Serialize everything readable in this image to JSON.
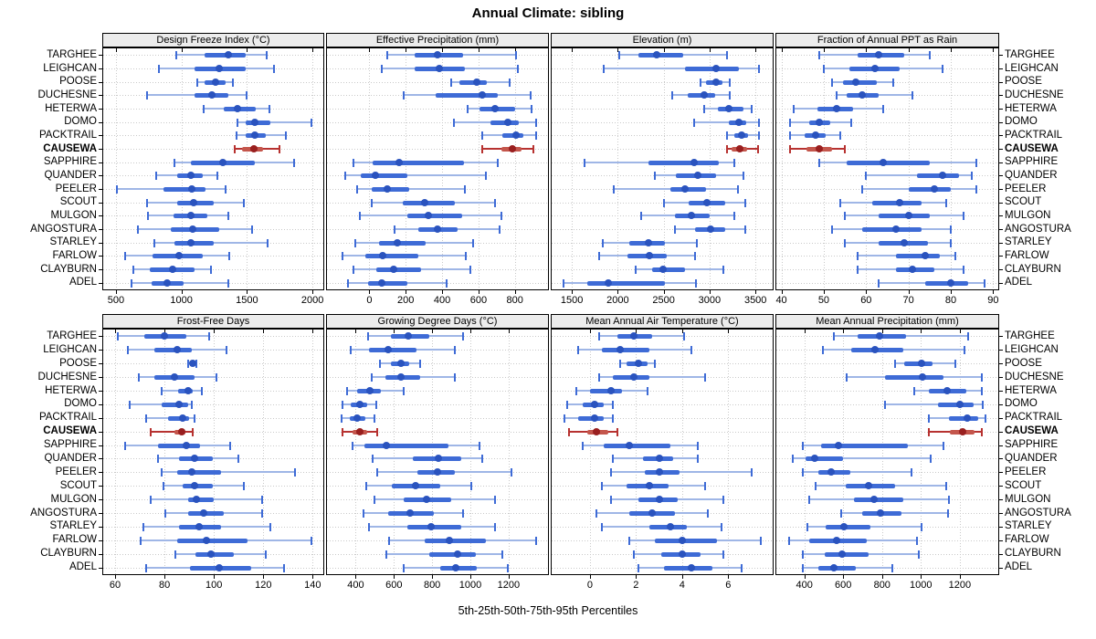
{
  "title": "Annual Climate: sibling",
  "caption": "5th-25th-50th-75th-95th Percentiles",
  "highlight_station": "CAUSEWA",
  "stations": [
    "TARGHEE",
    "LEIGHCAN",
    "POOSE",
    "DUCHESNE",
    "HETERWA",
    "DOMO",
    "PACKTRAIL",
    "CAUSEWA",
    "SAPPHIRE",
    "QUANDER",
    "PEELER",
    "SCOUT",
    "MULGON",
    "ANGOSTURA",
    "STARLEY",
    "FARLOW",
    "CLAYBURN",
    "ADEL"
  ],
  "colors": {
    "normal": {
      "line": "#9fb6e6",
      "cap": "#3e6bd6",
      "bar": "#3e6bd6",
      "dot": "#2a53be"
    },
    "highlight": {
      "line": "#b73230",
      "cap": "#b73230",
      "bar": "#c4564c",
      "dot": "#991f1f"
    },
    "strip_bg": "#ececec",
    "grid": "#c9c9c9",
    "border": "#000000"
  },
  "chart_data": {
    "type": "percentile-dotplot",
    "layout": "2 rows x 4 cols trellis",
    "percentiles": [
      "5th",
      "25th",
      "50th",
      "75th",
      "95th"
    ],
    "panels": [
      {
        "title": "Design Freeze Index (°C)",
        "grid_row": 0,
        "grid_col": 0,
        "xlim": [
          403,
          2083
        ],
        "ticks": [
          500,
          1000,
          1500,
          2000
        ],
        "values": [
          [
            960,
            1180,
            1360,
            1490,
            1650
          ],
          [
            830,
            1100,
            1290,
            1490,
            1710
          ],
          [
            1120,
            1180,
            1260,
            1340,
            1395
          ],
          [
            735,
            1100,
            1235,
            1355,
            1495
          ],
          [
            1170,
            1320,
            1425,
            1565,
            1670
          ],
          [
            1425,
            1490,
            1560,
            1680,
            1995
          ],
          [
            1420,
            1490,
            1560,
            1645,
            1795
          ],
          [
            1410,
            1465,
            1550,
            1625,
            1750
          ],
          [
            950,
            1070,
            1315,
            1560,
            1860
          ],
          [
            805,
            965,
            1070,
            1165,
            1275
          ],
          [
            510,
            860,
            1080,
            1185,
            1335
          ],
          [
            740,
            970,
            1095,
            1250,
            1480
          ],
          [
            745,
            940,
            1070,
            1195,
            1355
          ],
          [
            670,
            920,
            1085,
            1290,
            1540
          ],
          [
            790,
            950,
            1070,
            1245,
            1660
          ],
          [
            570,
            780,
            985,
            1165,
            1365
          ],
          [
            630,
            760,
            935,
            1100,
            1225
          ],
          [
            620,
            775,
            890,
            1015,
            1355
          ]
        ]
      },
      {
        "title": "Effective Precipitation (mm)",
        "grid_row": 0,
        "grid_col": 1,
        "xlim": [
          -233,
          982
        ],
        "ticks": [
          0,
          200,
          400,
          600,
          800
        ],
        "values": [
          [
            100,
            250,
            375,
            515,
            805
          ],
          [
            70,
            250,
            385,
            525,
            815
          ],
          [
            450,
            495,
            590,
            645,
            770
          ],
          [
            190,
            365,
            620,
            705,
            885
          ],
          [
            540,
            605,
            690,
            800,
            890
          ],
          [
            465,
            665,
            760,
            820,
            915
          ],
          [
            620,
            730,
            805,
            845,
            915
          ],
          [
            620,
            725,
            785,
            835,
            900
          ],
          [
            -85,
            20,
            165,
            520,
            705
          ],
          [
            -135,
            -45,
            35,
            210,
            640
          ],
          [
            -65,
            15,
            100,
            220,
            525
          ],
          [
            15,
            185,
            305,
            470,
            690
          ],
          [
            -50,
            210,
            325,
            510,
            725
          ],
          [
            140,
            270,
            375,
            485,
            715
          ],
          [
            -75,
            55,
            155,
            310,
            570
          ],
          [
            -150,
            -20,
            75,
            270,
            530
          ],
          [
            -85,
            40,
            135,
            285,
            555
          ],
          [
            -120,
            -5,
            70,
            210,
            425
          ]
        ]
      },
      {
        "title": "Elevation (m)",
        "grid_row": 0,
        "grid_col": 2,
        "xlim": [
          1280,
          3687
        ],
        "ticks": [
          1500,
          2000,
          2500,
          3000,
          3500
        ],
        "values": [
          [
            2020,
            2220,
            2425,
            2715,
            3190
          ],
          [
            1845,
            2730,
            3075,
            3320,
            3535
          ],
          [
            2905,
            2960,
            3070,
            3140,
            3215
          ],
          [
            2590,
            2765,
            2945,
            3060,
            3220
          ],
          [
            2945,
            3090,
            3210,
            3370,
            3460
          ],
          [
            2830,
            3205,
            3320,
            3400,
            3540
          ],
          [
            3190,
            3270,
            3345,
            3420,
            3540
          ],
          [
            3190,
            3240,
            3330,
            3410,
            3525
          ],
          [
            1640,
            2335,
            2830,
            3105,
            3270
          ],
          [
            2400,
            2630,
            2870,
            3070,
            3370
          ],
          [
            1955,
            2575,
            2730,
            2960,
            3310
          ],
          [
            2500,
            2770,
            2970,
            3165,
            3385
          ],
          [
            2250,
            2620,
            2805,
            3000,
            3265
          ],
          [
            2625,
            2845,
            3010,
            3165,
            3385
          ],
          [
            1835,
            2130,
            2330,
            2515,
            2860
          ],
          [
            1800,
            2105,
            2345,
            2535,
            2845
          ],
          [
            2195,
            2370,
            2490,
            2730,
            3145
          ],
          [
            1410,
            1670,
            1900,
            2510,
            2855
          ]
        ]
      },
      {
        "title": "Fraction of Annual PPT as Rain",
        "grid_row": 0,
        "grid_col": 3,
        "xlim": [
          38.8,
          91.2
        ],
        "ticks": [
          40,
          50,
          60,
          70,
          80,
          90
        ],
        "values": [
          [
            49,
            58,
            63,
            69,
            75
          ],
          [
            50,
            56,
            62,
            68,
            78
          ],
          [
            52,
            54.5,
            57.5,
            62.5,
            66.5
          ],
          [
            53,
            55.5,
            59,
            63,
            71
          ],
          [
            43,
            48.5,
            53,
            57,
            64
          ],
          [
            42,
            46.5,
            49,
            51.5,
            56.5
          ],
          [
            42,
            45.5,
            48,
            50.5,
            54
          ],
          [
            42,
            46,
            49,
            52,
            55
          ],
          [
            49,
            55.5,
            64,
            75,
            86
          ],
          [
            60,
            72,
            78,
            82,
            85
          ],
          [
            59,
            70,
            76,
            80,
            86
          ],
          [
            54,
            61.5,
            68,
            73,
            79
          ],
          [
            55,
            63,
            70,
            75,
            83
          ],
          [
            52,
            59,
            67,
            73,
            80
          ],
          [
            55,
            63,
            69,
            74.5,
            80
          ],
          [
            58,
            67,
            74,
            77.5,
            81
          ],
          [
            58,
            67,
            71,
            76,
            83
          ],
          [
            63,
            74,
            80,
            84,
            88
          ]
        ]
      },
      {
        "title": "Frost-Free Days",
        "grid_row": 1,
        "grid_col": 0,
        "xlim": [
          55.2,
          144.3
        ],
        "ticks": [
          60,
          80,
          100,
          120,
          140
        ],
        "values": [
          [
            61,
            72,
            80,
            89,
            98
          ],
          [
            65,
            76,
            85,
            91,
            105
          ],
          [
            89.5,
            90.5,
            91.5,
            92.5,
            93
          ],
          [
            69.5,
            76,
            84,
            92,
            101
          ],
          [
            79,
            85.5,
            89.5,
            91.5,
            95
          ],
          [
            66,
            79,
            86,
            89.5,
            91
          ],
          [
            72.5,
            81.5,
            87.5,
            90,
            92
          ],
          [
            74.5,
            84,
            87,
            88.5,
            91.5
          ],
          [
            64,
            77.5,
            89,
            94.5,
            106.5
          ],
          [
            77.5,
            86,
            92,
            99.5,
            110
          ],
          [
            79,
            85,
            91,
            103,
            133
          ],
          [
            79.5,
            87.5,
            92,
            99.5,
            112
          ],
          [
            74.5,
            89.5,
            93,
            100,
            119.5
          ],
          [
            80.5,
            89.5,
            96,
            104,
            119.5
          ],
          [
            71.5,
            86,
            94,
            103,
            123
          ],
          [
            70.5,
            85,
            97,
            113.5,
            139.5
          ],
          [
            84.5,
            92.5,
            99,
            108,
            121
          ],
          [
            72.5,
            90.5,
            102,
            115,
            128.5
          ]
        ]
      },
      {
        "title": "Growing Degree Days (°C)",
        "grid_row": 1,
        "grid_col": 1,
        "xlim": [
          250,
          1406
        ],
        "ticks": [
          400,
          600,
          800,
          1000,
          1200
        ],
        "values": [
          [
            465,
            585,
            675,
            785,
            960
          ],
          [
            375,
            470,
            570,
            720,
            920
          ],
          [
            525,
            585,
            635,
            680,
            735
          ],
          [
            485,
            555,
            635,
            735,
            920
          ],
          [
            355,
            410,
            475,
            530,
            650
          ],
          [
            330,
            375,
            420,
            460,
            510
          ],
          [
            325,
            370,
            410,
            450,
            500
          ],
          [
            330,
            385,
            420,
            460,
            515
          ],
          [
            385,
            445,
            560,
            885,
            1050
          ],
          [
            490,
            700,
            835,
            950,
            1060
          ],
          [
            515,
            725,
            830,
            920,
            1215
          ],
          [
            455,
            590,
            715,
            840,
            1005
          ],
          [
            500,
            650,
            770,
            900,
            1130
          ],
          [
            440,
            570,
            685,
            810,
            960
          ],
          [
            470,
            670,
            795,
            950,
            1130
          ],
          [
            575,
            760,
            890,
            1080,
            1345
          ],
          [
            560,
            785,
            935,
            1030,
            1165
          ],
          [
            650,
            840,
            925,
            1035,
            1195
          ]
        ]
      },
      {
        "title": "Mean Annual Air Temperature (°C)",
        "grid_row": 1,
        "grid_col": 2,
        "xlim": [
          -1.66,
          7.93
        ],
        "ticks": [
          0,
          2,
          4,
          6
        ],
        "values": [
          [
            0.4,
            1.2,
            1.9,
            2.7,
            4.1
          ],
          [
            -0.5,
            0.5,
            1.3,
            2.6,
            4.4
          ],
          [
            1.3,
            1.6,
            2.1,
            2.5,
            2.8
          ],
          [
            0.4,
            1.0,
            1.9,
            2.6,
            5.0
          ],
          [
            -0.6,
            0.0,
            0.9,
            1.4,
            2.5
          ],
          [
            -1.0,
            -0.3,
            0.2,
            0.6,
            1.0
          ],
          [
            -1.1,
            -0.5,
            0.2,
            0.6,
            1.0
          ],
          [
            -0.9,
            -0.1,
            0.3,
            0.8,
            1.2
          ],
          [
            -0.3,
            0.6,
            1.7,
            3.5,
            4.7
          ],
          [
            1.0,
            2.3,
            3.0,
            3.6,
            4.7
          ],
          [
            0.9,
            2.4,
            3.0,
            3.9,
            7.0
          ],
          [
            0.5,
            1.6,
            2.6,
            3.4,
            5.0
          ],
          [
            0.9,
            2.1,
            3.0,
            3.8,
            5.8
          ],
          [
            0.3,
            1.7,
            2.7,
            3.7,
            5.1
          ],
          [
            0.5,
            2.6,
            3.5,
            4.2,
            5.7
          ],
          [
            1.7,
            2.8,
            4.0,
            5.5,
            7.4
          ],
          [
            1.9,
            3.1,
            4.0,
            4.8,
            5.8
          ],
          [
            2.1,
            3.2,
            4.4,
            5.3,
            6.6
          ]
        ]
      },
      {
        "title": "Mean Annual Precipitation (mm)",
        "grid_row": 1,
        "grid_col": 3,
        "xlim": [
          256,
          1398
        ],
        "ticks": [
          400,
          600,
          800,
          1000,
          1200
        ],
        "values": [
          [
            550,
            675,
            785,
            925,
            1245
          ],
          [
            495,
            640,
            765,
            910,
            1225
          ],
          [
            865,
            915,
            1005,
            1060,
            1175
          ],
          [
            620,
            815,
            1010,
            1115,
            1315
          ],
          [
            965,
            1040,
            1135,
            1235,
            1315
          ],
          [
            815,
            1090,
            1200,
            1270,
            1320
          ],
          [
            1040,
            1145,
            1240,
            1295,
            1330
          ],
          [
            1040,
            1150,
            1215,
            1275,
            1315
          ],
          [
            390,
            485,
            575,
            935,
            1115
          ],
          [
            340,
            405,
            455,
            600,
            1050
          ],
          [
            390,
            470,
            540,
            635,
            950
          ],
          [
            460,
            615,
            730,
            865,
            1130
          ],
          [
            425,
            655,
            760,
            910,
            1145
          ],
          [
            590,
            700,
            790,
            900,
            1140
          ],
          [
            415,
            510,
            605,
            740,
            1005
          ],
          [
            320,
            425,
            565,
            720,
            980
          ],
          [
            390,
            505,
            595,
            730,
            990
          ],
          [
            390,
            470,
            550,
            665,
            855
          ]
        ]
      }
    ]
  }
}
